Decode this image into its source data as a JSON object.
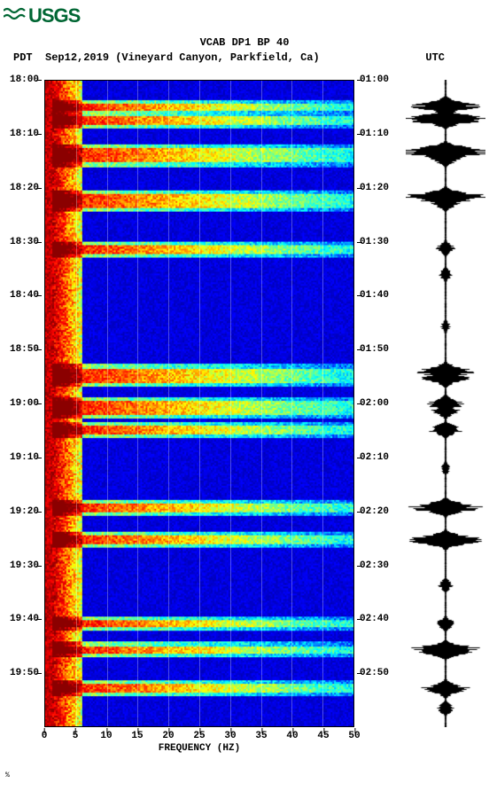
{
  "logo": {
    "text": "USGS",
    "color": "#006633"
  },
  "header": {
    "title": "VCAB DP1 BP 40",
    "pdt_label": "PDT",
    "date": "Sep12,2019",
    "location": "(Vineyard Canyon, Parkfield, Ca)",
    "utc_label": "UTC",
    "title_fontsize": 12,
    "text_color": "#000000"
  },
  "chart": {
    "type": "spectrogram",
    "xlim": [
      0,
      50
    ],
    "xtick_step": 5,
    "xlabel": "FREQUENCY (HZ)",
    "xlabel_fontsize": 11,
    "y_left_ticks": [
      "18:00",
      "18:10",
      "18:20",
      "18:30",
      "18:40",
      "18:50",
      "19:00",
      "19:10",
      "19:20",
      "19:30",
      "19:40",
      "19:50"
    ],
    "y_right_ticks": [
      "01:00",
      "01:10",
      "01:20",
      "01:30",
      "01:40",
      "01:50",
      "02:00",
      "02:10",
      "02:20",
      "02:30",
      "02:40",
      "02:50"
    ],
    "colormap": {
      "low": "#00008b",
      "mid_low": "#0000ff",
      "mid": "#00ffff",
      "mid_high": "#ffff00",
      "high": "#ff0000",
      "highest": "#8b0000"
    },
    "gridline_color": "#ffffff",
    "gridline_alpha": 0.3,
    "event_rows": [
      0.04,
      0.06,
      0.11,
      0.12,
      0.18,
      0.19,
      0.26,
      0.45,
      0.46,
      0.5,
      0.51,
      0.54,
      0.66,
      0.71,
      0.84,
      0.88,
      0.94
    ],
    "background_color": "#0000cc"
  },
  "seismogram": {
    "trace_color": "#000000",
    "events": [
      {
        "t": 0.04,
        "a": 0.7
      },
      {
        "t": 0.06,
        "a": 0.9
      },
      {
        "t": 0.11,
        "a": 0.95
      },
      {
        "t": 0.12,
        "a": 0.4
      },
      {
        "t": 0.18,
        "a": 0.85
      },
      {
        "t": 0.19,
        "a": 0.3
      },
      {
        "t": 0.26,
        "a": 0.2
      },
      {
        "t": 0.3,
        "a": 0.15
      },
      {
        "t": 0.38,
        "a": 0.1
      },
      {
        "t": 0.45,
        "a": 0.6
      },
      {
        "t": 0.46,
        "a": 0.5
      },
      {
        "t": 0.5,
        "a": 0.4
      },
      {
        "t": 0.51,
        "a": 0.3
      },
      {
        "t": 0.54,
        "a": 0.35
      },
      {
        "t": 0.6,
        "a": 0.1
      },
      {
        "t": 0.66,
        "a": 0.75
      },
      {
        "t": 0.71,
        "a": 0.85
      },
      {
        "t": 0.78,
        "a": 0.15
      },
      {
        "t": 0.84,
        "a": 0.2
      },
      {
        "t": 0.88,
        "a": 0.8
      },
      {
        "t": 0.94,
        "a": 0.5
      },
      {
        "t": 0.97,
        "a": 0.2
      }
    ]
  },
  "footnote": "%"
}
